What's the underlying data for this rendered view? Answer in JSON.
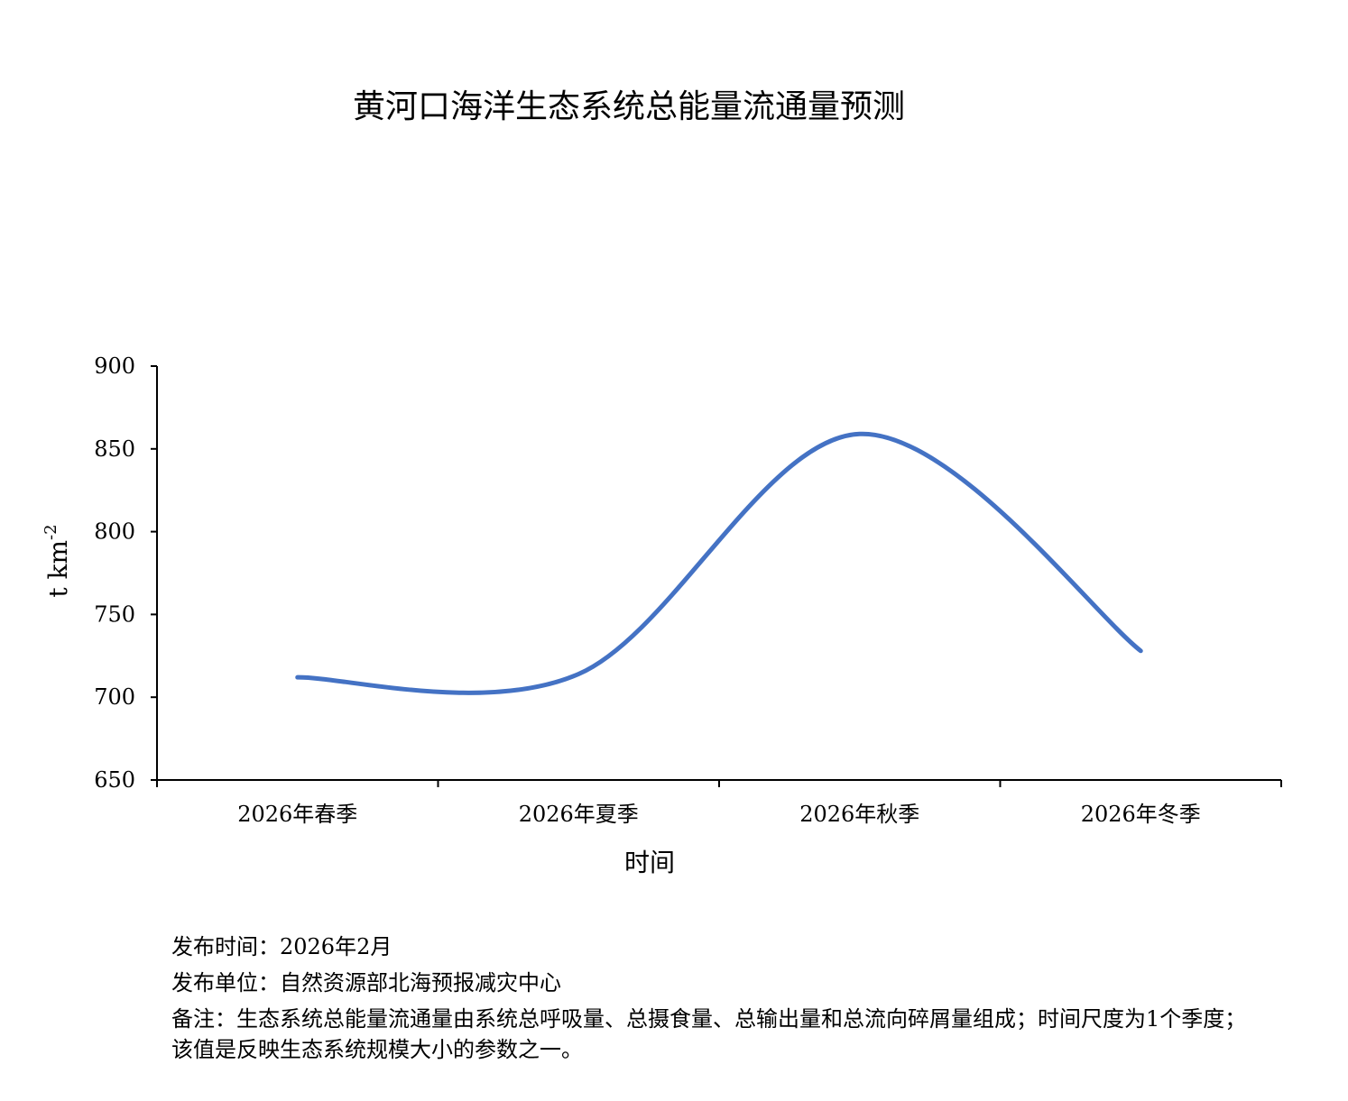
{
  "chart_data": {
    "type": "line",
    "title": "黄河口海洋生态系统总能量流通量预测",
    "xlabel": "时间",
    "ylabel": "t km",
    "ylabel_superscript": "-2",
    "categories": [
      "2026年春季",
      "2026年夏季",
      "2026年秋季",
      "2026年冬季"
    ],
    "series": [
      {
        "values": [
          712,
          714,
          859,
          728
        ],
        "color": "#4472C4"
      }
    ],
    "smooth": true,
    "ylim": [
      650,
      900
    ],
    "yticks": [
      650,
      700,
      750,
      800,
      850,
      900
    ],
    "grid": false,
    "legend": "none"
  },
  "footnotes": {
    "release_time": "发布时间：2026年2月",
    "publisher": "发布单位：自然资源部北海预报减灾中心",
    "remark": "备注：生态系统总能量流通量由系统总呼吸量、总摄食量、总输出量和总流向碎屑量组成；时间尺度为1个季度；该值是反映生态系统规模大小的参数之一。"
  }
}
